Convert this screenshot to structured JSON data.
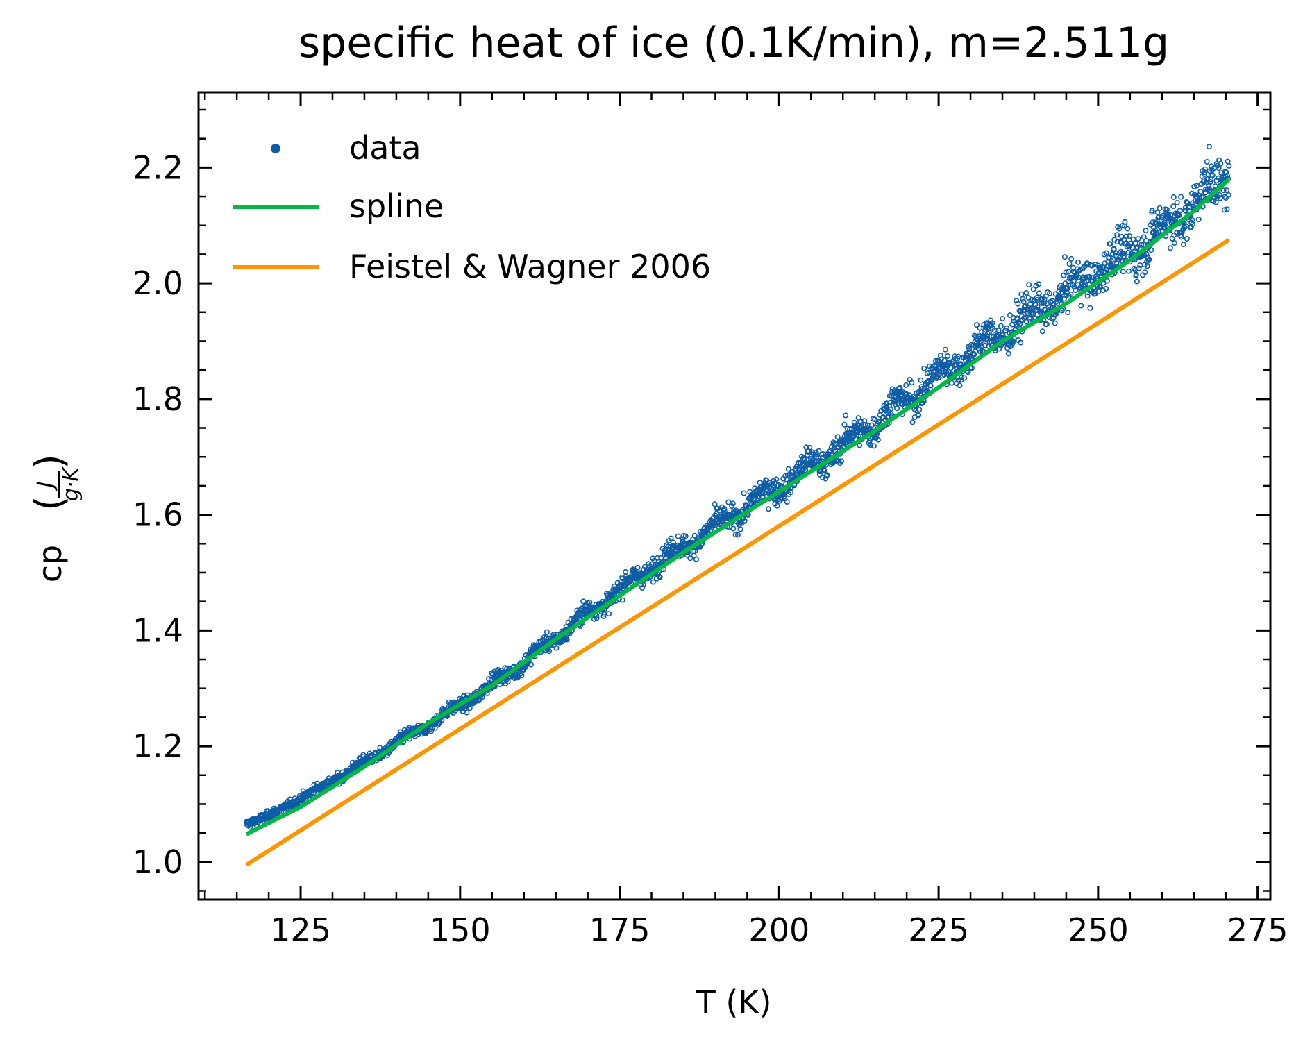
{
  "chart_data": {
    "type": "scatter",
    "title": "specific heat of ice (0.1K/min), m=2.511g",
    "xlabel": "T (K)",
    "ylabel": "cp",
    "ylabel_unit_num": "J",
    "ylabel_unit_den": "g·K",
    "xlim": [
      109,
      277
    ],
    "ylim": [
      0.935,
      2.33
    ],
    "xticks": [
      125,
      150,
      175,
      200,
      225,
      250,
      275
    ],
    "xtick_labels": [
      "125",
      "150",
      "175",
      "200",
      "225",
      "250",
      "275"
    ],
    "yticks": [
      1.0,
      1.2,
      1.4,
      1.6,
      1.8,
      2.0,
      2.2
    ],
    "ytick_labels": [
      "1.0",
      "1.2",
      "1.4",
      "1.6",
      "1.8",
      "2.0",
      "2.2"
    ],
    "x_minor_step": 5,
    "y_minor_step": 0.05,
    "grid": false,
    "legend_position": "upper-left",
    "series": [
      {
        "name": "data",
        "kind": "scatter",
        "color": "#0c5da5",
        "x_range": [
          116.5,
          270.5
        ],
        "anchors": {
          "x": [
            116.5,
            120,
            130,
            140,
            150,
            160,
            170,
            180,
            190,
            200,
            210,
            220,
            230,
            240,
            250,
            260,
            270.5
          ],
          "y": [
            1.065,
            1.08,
            1.14,
            1.205,
            1.27,
            1.345,
            1.43,
            1.51,
            1.58,
            1.65,
            1.72,
            1.8,
            1.88,
            1.95,
            2.02,
            2.09,
            2.19
          ]
        }
      },
      {
        "name": "spline",
        "kind": "line",
        "color": "#00b945",
        "x": [
          116.5,
          125,
          135,
          145,
          155,
          165,
          175,
          185,
          195,
          205,
          215,
          225,
          235,
          245,
          255,
          265,
          270.5
        ],
        "y": [
          1.048,
          1.095,
          1.165,
          1.24,
          1.305,
          1.385,
          1.46,
          1.535,
          1.605,
          1.675,
          1.745,
          1.82,
          1.9,
          1.965,
          2.04,
          2.125,
          2.18
        ]
      },
      {
        "name": "Feistel & Wagner 2006",
        "kind": "line",
        "color": "#ff9500",
        "x": [
          116.5,
          270.5
        ],
        "y": [
          0.995,
          2.075
        ]
      }
    ]
  }
}
